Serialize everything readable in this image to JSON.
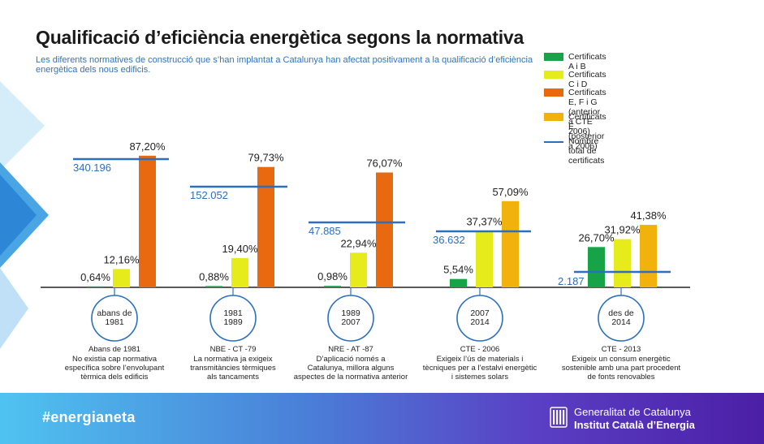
{
  "title": "Qualificació d’eficiència energètica segons la normativa",
  "subtitle": "Les diferents normatives de construcció que s’han implantat a Catalunya han afectat positivament a la qualificació d’eficiència energètica dels nous edificis.",
  "colors": {
    "ab": "#17a347",
    "cd": "#e6ec1c",
    "efg": "#e8690f",
    "e": "#f2b20e",
    "total": "#2b6fc0",
    "label_blue": "#2b6fc0"
  },
  "legend": [
    {
      "key": "ab",
      "label": "Certificats A i B",
      "type": "box"
    },
    {
      "key": "cd",
      "label": "Certificats C i D",
      "type": "box"
    },
    {
      "key": "efg",
      "label": "Certificats E, F i G\n(anterior a CTE 2006)",
      "type": "box"
    },
    {
      "key": "e",
      "label": "Certificats E\n(posterior a 2006)",
      "type": "box"
    },
    {
      "key": "total",
      "label": "Nombre total de certificats",
      "type": "line"
    }
  ],
  "chart_data": {
    "type": "bar",
    "title": "Qualificació d’eficiència energètica segons la normativa",
    "ylim": [
      0,
      100
    ],
    "unit": "%",
    "grid": false,
    "legend_position": "top-right",
    "groups": [
      {
        "period": "abans de\n1981",
        "bars": [
          {
            "key": "ab",
            "value": 0.64,
            "label": "0,64%"
          },
          {
            "key": "cd",
            "value": 12.16,
            "label": "12,16%"
          },
          {
            "key": "efg",
            "value": 87.2,
            "label": "87,20%"
          }
        ],
        "total": 340196,
        "total_label": "340.196",
        "norm_title": "Abans de 1981",
        "description": "No existia cap normativa\nespecífica sobre l’envolupant\ntèrmica dels edificis"
      },
      {
        "period": "1981\n1989",
        "bars": [
          {
            "key": "ab",
            "value": 0.88,
            "label": "0,88%"
          },
          {
            "key": "cd",
            "value": 19.4,
            "label": "19,40%"
          },
          {
            "key": "efg",
            "value": 79.73,
            "label": "79,73%"
          }
        ],
        "total": 152052,
        "total_label": "152.052",
        "norm_title": "NBE - CT -79",
        "description": "La normativa ja exigeix\ntransmitàncies tèrmiques\nals tancaments"
      },
      {
        "period": "1989\n2007",
        "bars": [
          {
            "key": "ab",
            "value": 0.98,
            "label": "0,98%"
          },
          {
            "key": "cd",
            "value": 22.94,
            "label": "22,94%"
          },
          {
            "key": "efg",
            "value": 76.07,
            "label": "76,07%"
          }
        ],
        "total": 47885,
        "total_label": "47.885",
        "norm_title": "NRE - AT -87",
        "description": "D’aplicació només a\nCatalunya, millora alguns\naspectes de la normativa anterior"
      },
      {
        "period": "2007\n2014",
        "bars": [
          {
            "key": "ab",
            "value": 5.54,
            "label": "5,54%"
          },
          {
            "key": "cd",
            "value": 37.37,
            "label": "37,37%"
          },
          {
            "key": "e",
            "value": 57.09,
            "label": "57,09%"
          }
        ],
        "total": 36632,
        "total_label": "36.632",
        "norm_title": "CTE - 2006",
        "description": "Exigeix l’ús de materials i\ntècniques per a l’estalvi energètic\ni sistemes solars"
      },
      {
        "period": "des de\n2014",
        "bars": [
          {
            "key": "ab",
            "value": 26.7,
            "label": "26,70%"
          },
          {
            "key": "cd",
            "value": 31.92,
            "label": "31,92%"
          },
          {
            "key": "e",
            "value": 41.38,
            "label": "41,38%"
          }
        ],
        "total": 2187,
        "total_label": "2.187",
        "norm_title": "CTE - 2013",
        "description": "Exigeix un consum energètic\nsostenible  amb una part procedent\nde fonts renovables"
      }
    ]
  },
  "footer": {
    "hashtag": "#energianeta",
    "org_line1": "Generalitat de Catalunya",
    "org_line2": "Institut Català d’Energia"
  }
}
